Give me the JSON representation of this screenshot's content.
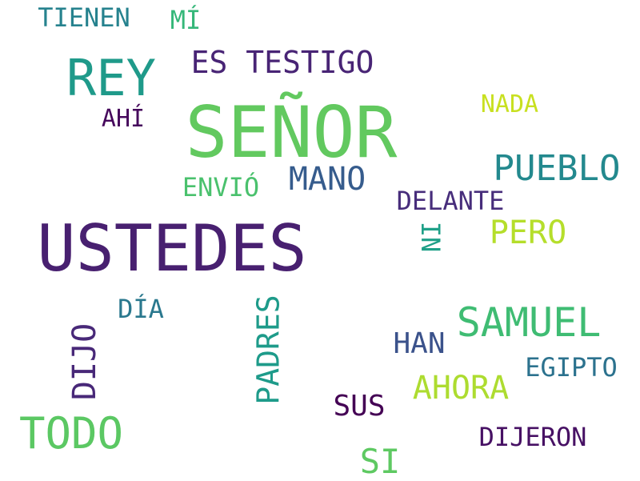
{
  "words": [
    {
      "text": "SEÑOR",
      "color": "#62c95f"
    },
    {
      "text": "USTEDES",
      "color": "#482070"
    },
    {
      "text": "REY",
      "color": "#1f9a8a"
    },
    {
      "text": "TODO",
      "color": "#5bc863"
    },
    {
      "text": "SAMUEL",
      "color": "#3fbc73"
    },
    {
      "text": "PUEBLO",
      "color": "#23898e"
    },
    {
      "text": "ES TESTIGO",
      "color": "#482475"
    },
    {
      "text": "MANO",
      "color": "#365c8d"
    },
    {
      "text": "AHORA",
      "color": "#addc30"
    },
    {
      "text": "PERO",
      "color": "#b5de2b"
    },
    {
      "text": "DIJO",
      "color": "#482878"
    },
    {
      "text": "PADRES",
      "color": "#1e9b8a"
    },
    {
      "text": "SI",
      "color": "#5ec962"
    },
    {
      "text": "TIENEN",
      "color": "#26828e"
    },
    {
      "text": "SUS",
      "color": "#440154"
    },
    {
      "text": "DIJERON",
      "color": "#471164"
    },
    {
      "text": "HAN",
      "color": "#3b528b"
    },
    {
      "text": "DELANTE",
      "color": "#472d7b"
    },
    {
      "text": "EGIPTO",
      "color": "#2c728e"
    },
    {
      "text": "ENVIÓ",
      "color": "#4ac16d"
    },
    {
      "text": "DÍA",
      "color": "#2a788e"
    },
    {
      "text": "NI",
      "color": "#1fa088"
    },
    {
      "text": "MÍ",
      "color": "#35b779"
    },
    {
      "text": "NADA",
      "color": "#c8e020"
    },
    {
      "text": "AHÍ",
      "color": "#46085c"
    }
  ]
}
